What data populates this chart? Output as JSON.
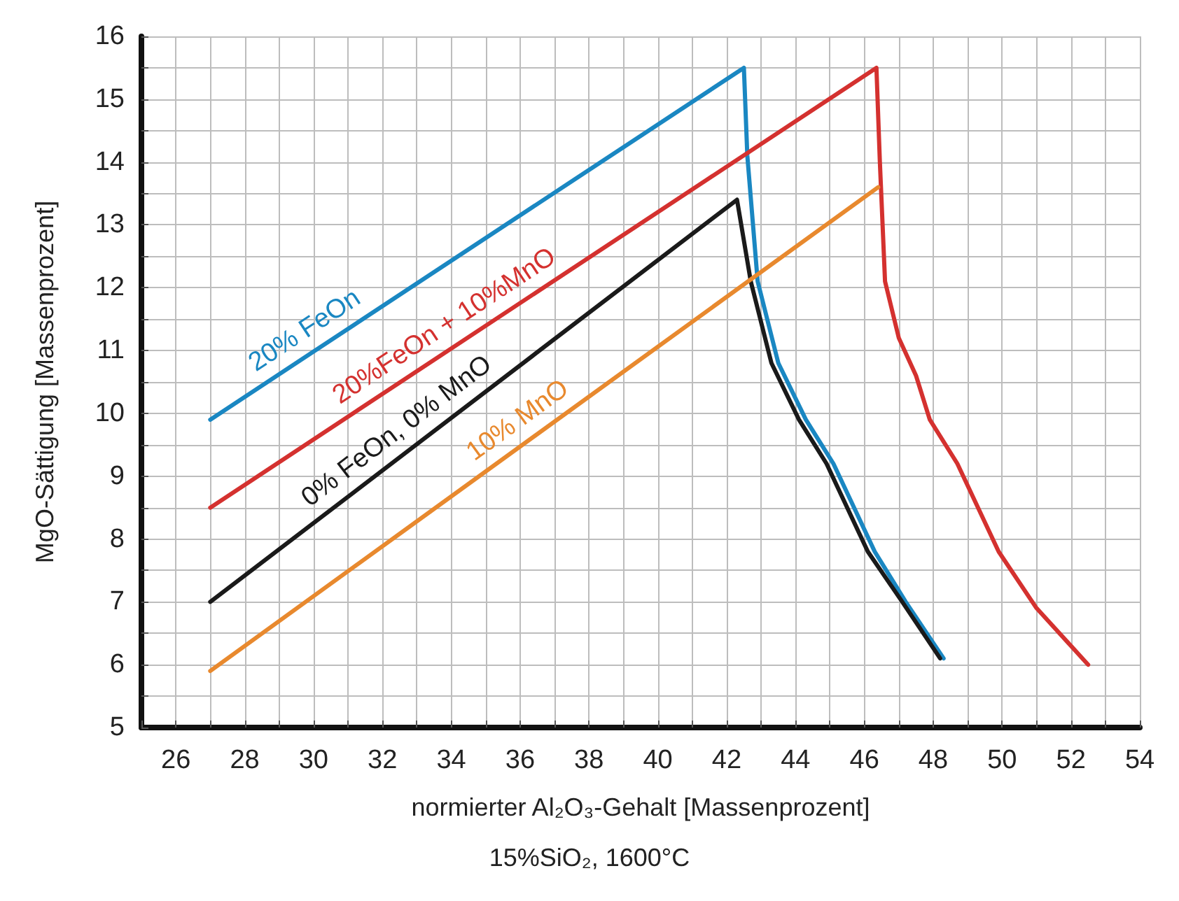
{
  "chart_data": {
    "type": "line",
    "xlabel": "normierter Al₂O₃-Gehalt [Massenprozent]",
    "ylabel": "MgO-Sättigung [Massenprozent]",
    "annotations": [
      "15%SiO₂, 1600°C"
    ],
    "xlim": [
      25,
      54
    ],
    "xticks": [
      {
        "value": 25,
        "label": null
      },
      26,
      {
        "value": 27,
        "label": null
      },
      28,
      {
        "value": 29,
        "label": null
      },
      30,
      {
        "value": 31,
        "label": null
      },
      32,
      {
        "value": 33,
        "label": null
      },
      34,
      {
        "value": 35,
        "label": null
      },
      36,
      {
        "value": 37,
        "label": null
      },
      38,
      {
        "value": 39,
        "label": null
      },
      40,
      {
        "value": 41,
        "label": null
      },
      42,
      {
        "value": 43,
        "label": null
      },
      44,
      {
        "value": 45,
        "label": null
      },
      46,
      {
        "value": 47,
        "label": null
      },
      48,
      {
        "value": 49,
        "label": null
      },
      50,
      {
        "value": 51,
        "label": null
      },
      52,
      {
        "value": 53,
        "label": null
      },
      54
    ],
    "ylim": [
      5,
      16
    ],
    "yticks": [
      5,
      {
        "value": 5.5,
        "label": null
      },
      6,
      {
        "value": 6.5,
        "label": null
      },
      7,
      {
        "value": 7.5,
        "label": null
      },
      8,
      {
        "value": 8.5,
        "label": null
      },
      9,
      {
        "value": 9.5,
        "label": null
      },
      10,
      {
        "value": 10.5,
        "label": null
      },
      11,
      {
        "value": 11.5,
        "label": null
      },
      12,
      {
        "value": 12.5,
        "label": null
      },
      13,
      {
        "value": 13.5,
        "label": null
      },
      14,
      {
        "value": 14.5,
        "label": null
      },
      15,
      {
        "value": 15.5,
        "label": null
      },
      16
    ],
    "grid": true,
    "legend": false,
    "marker": "none",
    "line_style": "solid",
    "series": [
      {
        "name": "20% FeOn",
        "color": "#1a87c2",
        "x": [
          27,
          42.5,
          42.6,
          42.9,
          43.5,
          44.3,
          45.1,
          46.3,
          47.2,
          48.3
        ],
        "values": [
          9.9,
          15.5,
          14.1,
          12.1,
          10.8,
          9.9,
          9.2,
          7.8,
          7.0,
          6.1
        ]
      },
      {
        "name": "20%FeOn + 10%MnO",
        "color": "#d4312f",
        "x": [
          27,
          46.35,
          46.45,
          46.6,
          47.0,
          47.5,
          47.9,
          48.7,
          49.9,
          51.0,
          52.5
        ],
        "values": [
          8.5,
          15.5,
          14.0,
          12.1,
          11.2,
          10.6,
          9.9,
          9.2,
          7.8,
          6.9,
          6.0
        ]
      },
      {
        "name": "0% FeOn, 0% MnO",
        "color": "#1a1a1a",
        "x": [
          27,
          42.3,
          42.7,
          43.3,
          44.1,
          44.9,
          46.1,
          47.1,
          48.2
        ],
        "values": [
          7.0,
          13.4,
          12.1,
          10.8,
          9.9,
          9.2,
          7.8,
          7.0,
          6.1
        ]
      },
      {
        "name": "10% MnO",
        "color": "#e8892e",
        "x": [
          27,
          46.4
        ],
        "values": [
          5.9,
          13.6
        ]
      }
    ]
  }
}
